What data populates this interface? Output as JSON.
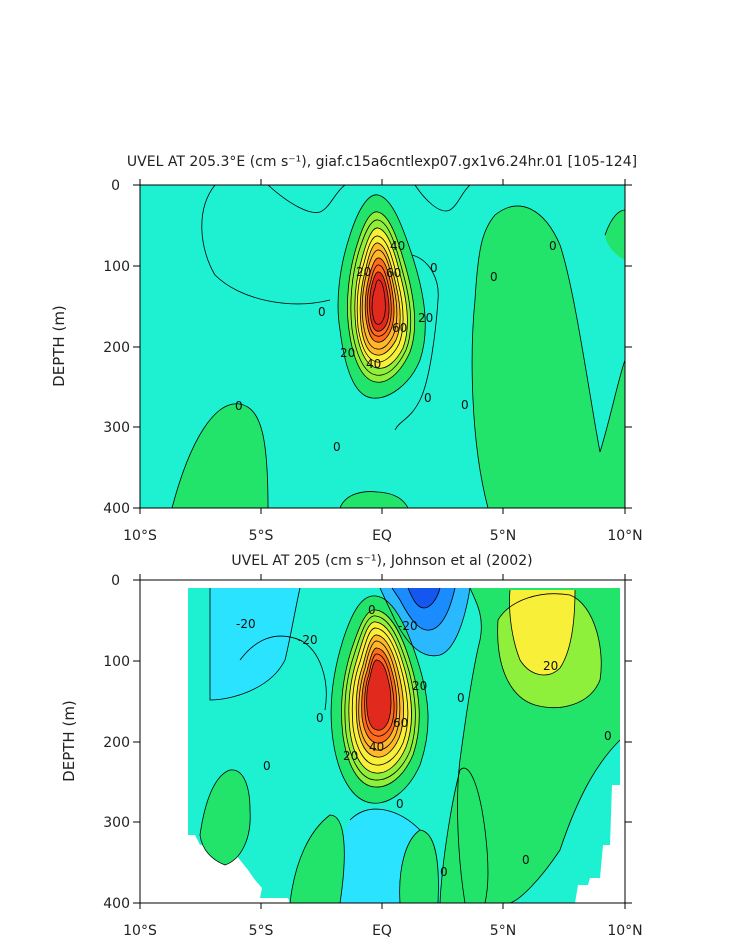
{
  "chart_data": [
    {
      "type": "heatmap",
      "title": "UVEL AT 205.3°E (cm s⁻¹), giaf.c15a6cntlexp07.gx1v6.24hr.01  [105-124]",
      "ylabel": "DEPTH (m)",
      "xlabel": "",
      "xlim": [
        -10,
        10
      ],
      "ylim": [
        400,
        0
      ],
      "x_tick_labels": [
        "10°S",
        "5°S",
        "EQ",
        "5°N",
        "10°N"
      ],
      "y_tick_labels": [
        "0",
        "100",
        "200",
        "300",
        "400"
      ],
      "contour_labels": [
        "40",
        "60",
        "20",
        "0",
        "20",
        "40",
        "60",
        "20",
        "0",
        "0",
        "0",
        "0",
        "0",
        "0",
        "0"
      ],
      "core": {
        "lat": 0.0,
        "depth": 130,
        "max_speed": 110
      },
      "grid": false,
      "legend": "none"
    },
    {
      "type": "heatmap",
      "title": "UVEL AT 205 (cm s⁻¹), Johnson et al (2002)",
      "ylabel": "DEPTH (m)",
      "xlabel": "",
      "xlim": [
        -10,
        10
      ],
      "ylim": [
        400,
        0
      ],
      "x_tick_labels": [
        "10°S",
        "5°S",
        "EQ",
        "5°N",
        "10°N"
      ],
      "y_tick_labels": [
        "0",
        "100",
        "200",
        "300",
        "400"
      ],
      "contour_labels": [
        "-20",
        "-20",
        "-20",
        "20",
        "60",
        "40",
        "20",
        "20",
        "0",
        "0",
        "0",
        "0",
        "0",
        "0",
        "0",
        "0"
      ],
      "core": {
        "lat": 0.0,
        "depth": 130,
        "max_speed": 100
      },
      "grid": false,
      "legend": "none"
    }
  ]
}
